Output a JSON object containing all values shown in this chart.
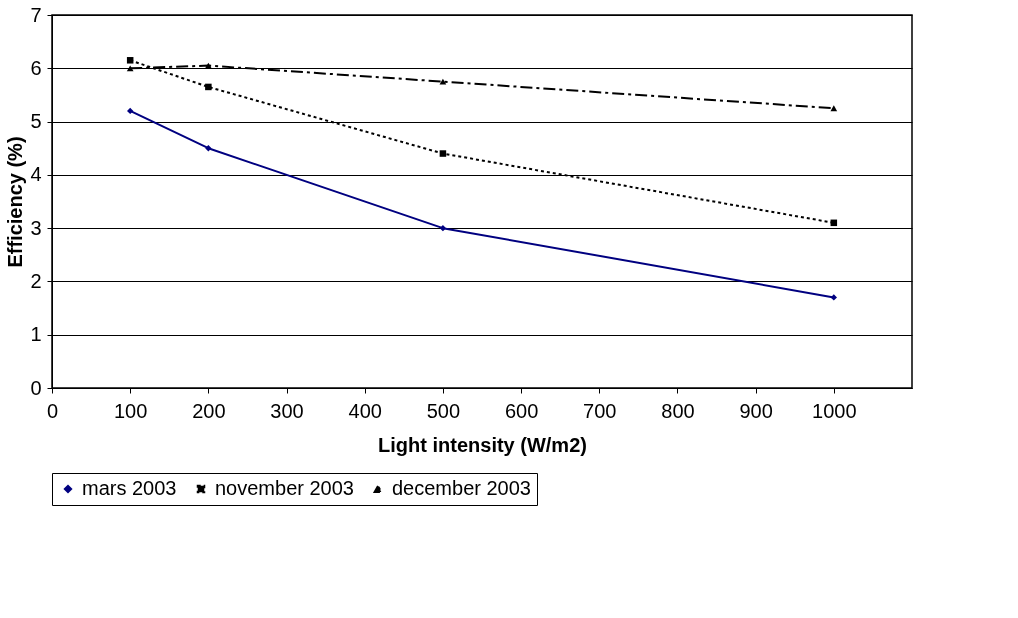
{
  "chart_data": {
    "type": "line",
    "xlabel": "Light intensity (W/m2)",
    "ylabel": "Efficiency (%)",
    "x": [
      100,
      200,
      500,
      1000
    ],
    "series": [
      {
        "name": "mars 2003",
        "color": "#000080",
        "values": [
          5.2,
          4.5,
          3.0,
          1.7
        ],
        "marker": "diamond",
        "line_style": "solid"
      },
      {
        "name": "november 2003",
        "color": "#000000",
        "values": [
          6.15,
          5.65,
          4.4,
          3.1
        ],
        "marker": "square",
        "line_style": "dotted"
      },
      {
        "name": "december 2003",
        "color": "#000000",
        "values": [
          6.0,
          6.05,
          5.75,
          5.25
        ],
        "marker": "triangle",
        "line_style": "dashed"
      }
    ],
    "xlim": [
      0,
      1100
    ],
    "xticks": [
      0,
      100,
      200,
      300,
      400,
      500,
      600,
      700,
      800,
      900,
      1000
    ],
    "ylim": [
      0,
      7
    ],
    "yticks": [
      0,
      1,
      2,
      3,
      4,
      5,
      6,
      7
    ],
    "grid": "y",
    "legend": "bottom"
  }
}
